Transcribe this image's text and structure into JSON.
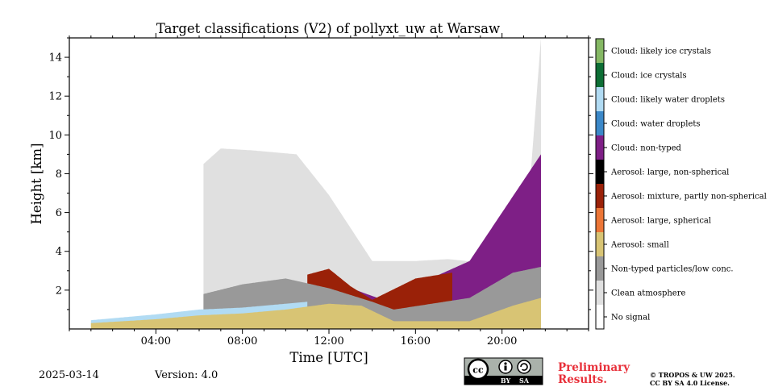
{
  "chart_data": {
    "type": "heatmap",
    "title": "Target classifications (V2) of pollyxt_uw at Warsaw",
    "xlabel": "Time [UTC]",
    "ylabel": "Height [km]",
    "xlim_hours": [
      0,
      24
    ],
    "ylim_km": [
      0,
      15
    ],
    "x_ticks": [
      {
        "value": 4,
        "label": "04:00"
      },
      {
        "value": 8,
        "label": "08:00"
      },
      {
        "value": 12,
        "label": "12:00"
      },
      {
        "value": 16,
        "label": "16:00"
      },
      {
        "value": 20,
        "label": "20:00"
      }
    ],
    "y_ticks": [
      {
        "value": 2,
        "label": "2"
      },
      {
        "value": 4,
        "label": "4"
      },
      {
        "value": 6,
        "label": "6"
      },
      {
        "value": 8,
        "label": "8"
      },
      {
        "value": 10,
        "label": "10"
      },
      {
        "value": 12,
        "label": "12"
      },
      {
        "value": 14,
        "label": "14"
      }
    ],
    "classes": [
      {
        "label": "No signal",
        "color": "#ffffff"
      },
      {
        "label": "Clean atmosphere",
        "color": "#e0e0e0"
      },
      {
        "label": "Non-typed particles/low conc.",
        "color": "#999999"
      },
      {
        "label": "Aerosol: small",
        "color": "#d8c474"
      },
      {
        "label": "Aerosol: large, spherical",
        "color": "#ec7637"
      },
      {
        "label": "Aerosol: mixture, partly non-spherical",
        "color": "#9a2108"
      },
      {
        "label": "Aerosol: large, non-spherical",
        "color": "#000000"
      },
      {
        "label": "Cloud: non-typed",
        "color": "#7e1f86"
      },
      {
        "label": "Cloud: water droplets",
        "color": "#3b88c8"
      },
      {
        "label": "Cloud: likely water droplets",
        "color": "#b1dbf3"
      },
      {
        "label": "Cloud: ice crystals",
        "color": "#0d6e35"
      },
      {
        "label": "Cloud: likely ice crystals",
        "color": "#85b864"
      }
    ],
    "features": [
      {
        "class": "Aerosol: small",
        "t_start": 1.0,
        "t_end": 21.8,
        "top_km_series": [
          [
            1.0,
            0.3
          ],
          [
            2.5,
            0.4
          ],
          [
            4.0,
            0.5
          ],
          [
            6.0,
            0.7
          ],
          [
            8.0,
            0.8
          ],
          [
            10.0,
            1.0
          ],
          [
            12.0,
            1.3
          ],
          [
            13.5,
            1.2
          ],
          [
            15.0,
            0.4
          ],
          [
            18.5,
            0.4
          ],
          [
            20.5,
            1.2
          ],
          [
            21.8,
            1.6
          ]
        ]
      },
      {
        "class": "Cloud: likely water droplets",
        "t_start": 1.0,
        "t_end": 11.0,
        "top_km_series": [
          [
            1.0,
            0.45
          ],
          [
            2.5,
            0.6
          ],
          [
            4.0,
            0.75
          ],
          [
            6.0,
            1.0
          ],
          [
            8.0,
            1.1
          ],
          [
            10.0,
            1.3
          ],
          [
            11.0,
            1.4
          ]
        ]
      },
      {
        "class": "Non-typed particles/low conc.",
        "t_start": 6.2,
        "t_end": 21.8,
        "top_km_series": [
          [
            6.2,
            1.8
          ],
          [
            8.0,
            2.3
          ],
          [
            10.0,
            2.6
          ],
          [
            12.0,
            2.1
          ],
          [
            14.0,
            1.4
          ],
          [
            15.0,
            1.0
          ],
          [
            18.5,
            1.6
          ],
          [
            20.5,
            2.9
          ],
          [
            21.8,
            3.2
          ]
        ]
      },
      {
        "class": "Aerosol: mixture, partly non-spherical",
        "t_start": 11.0,
        "t_end": 17.7,
        "top_km_series": [
          [
            11.0,
            2.8
          ],
          [
            12.0,
            3.1
          ],
          [
            13.0,
            2.2
          ],
          [
            14.0,
            1.5
          ],
          [
            16.0,
            2.6
          ],
          [
            17.7,
            2.9
          ]
        ]
      },
      {
        "class": "Cloud: non-typed",
        "t_start": 13.0,
        "t_end": 21.8,
        "top_km_series": [
          [
            13.0,
            2.1
          ],
          [
            14.5,
            1.5
          ],
          [
            18.5,
            3.5
          ],
          [
            21.8,
            9.0
          ]
        ]
      },
      {
        "class": "Clean atmosphere",
        "t_start": 6.2,
        "t_end": 21.8,
        "top_km_series": [
          [
            6.2,
            8.5
          ],
          [
            7.0,
            9.3
          ],
          [
            8.5,
            9.2
          ],
          [
            10.5,
            9.0
          ],
          [
            12.0,
            6.9
          ],
          [
            14.0,
            3.5
          ],
          [
            16.0,
            3.5
          ],
          [
            17.5,
            3.6
          ],
          [
            21.0,
            3.2
          ],
          [
            21.8,
            15.0
          ]
        ]
      }
    ]
  },
  "footer": {
    "date": "2025-03-14",
    "version": "Version: 4.0",
    "preliminary_line1": "Preliminary",
    "preliminary_line2": "Results.",
    "copyright_line1": "© TROPOS & UW 2025.",
    "copyright_line2": "CC BY SA 4.0 License."
  },
  "license_badge": {
    "cc": "cc",
    "by": "BY",
    "sa": "SA"
  }
}
